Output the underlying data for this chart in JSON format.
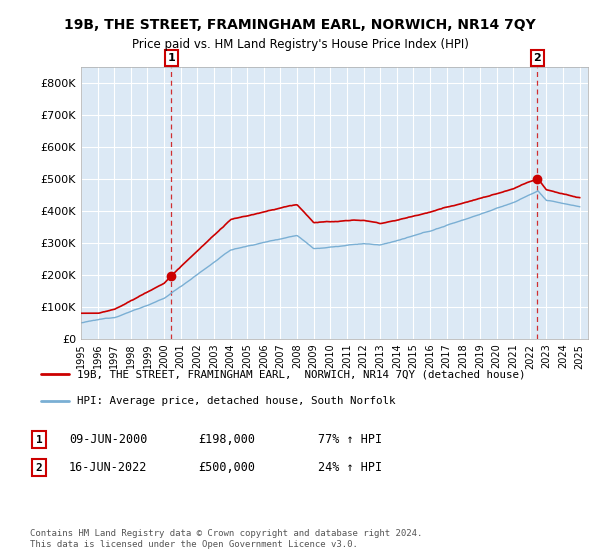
{
  "title": "19B, THE STREET, FRAMINGHAM EARL, NORWICH, NR14 7QY",
  "subtitle": "Price paid vs. HM Land Registry's House Price Index (HPI)",
  "ylim": [
    0,
    850000
  ],
  "yticks": [
    0,
    100000,
    200000,
    300000,
    400000,
    500000,
    600000,
    700000,
    800000
  ],
  "ytick_labels": [
    "£0",
    "£100K",
    "£200K",
    "£300K",
    "£400K",
    "£500K",
    "£600K",
    "£700K",
    "£800K"
  ],
  "sale1_date": 2000.44,
  "sale1_price": 198000,
  "sale2_date": 2022.46,
  "sale2_price": 500000,
  "line1_color": "#cc0000",
  "line2_color": "#7aafd4",
  "vline_color": "#cc0000",
  "plot_bg_color": "#dce9f5",
  "background_color": "#ffffff",
  "grid_color": "#ffffff",
  "legend1_label": "19B, THE STREET, FRAMINGHAM EARL,  NORWICH, NR14 7QY (detached house)",
  "legend2_label": "HPI: Average price, detached house, South Norfolk",
  "footnote": "Contains HM Land Registry data © Crown copyright and database right 2024.\nThis data is licensed under the Open Government Licence v3.0."
}
